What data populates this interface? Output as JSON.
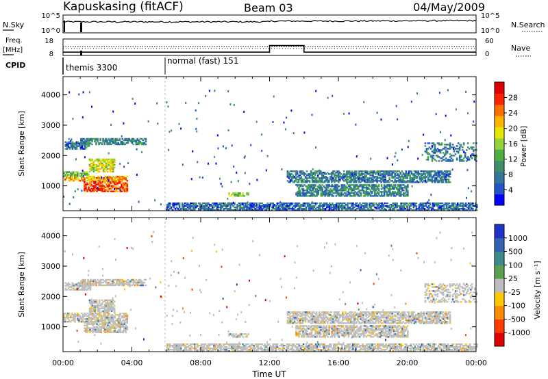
{
  "header": {
    "station": "Kapuskasing (fitACF)",
    "beam": "Beam 03",
    "date": "04/May/2009"
  },
  "chart_data": [
    {
      "type": "line",
      "panel": "noise",
      "left_label": "N.Sky",
      "right_label": "N.Search",
      "left_ticks": [
        "10^5",
        "10^0"
      ],
      "right_ticks": [
        "10^5",
        "10^0"
      ],
      "xlim": [
        0,
        24
      ]
    },
    {
      "type": "line",
      "panel": "frequency",
      "left_label_top": "Freq.",
      "left_label_bottom": "[MHz]",
      "right_label": "Nave",
      "left_ticks": [
        18,
        8
      ],
      "right_ticks": [
        60,
        0
      ],
      "freq_series": [
        {
          "x": 0,
          "y": 10
        },
        {
          "x": 12,
          "y": 10
        },
        {
          "x": 12,
          "y": 14
        },
        {
          "x": 14,
          "y": 14
        },
        {
          "x": 14,
          "y": 10
        },
        {
          "x": 24,
          "y": 10
        }
      ],
      "nave_level": 30,
      "xlim": [
        0,
        24
      ]
    },
    {
      "type": "annotation",
      "panel": "cpid",
      "label": "CPID",
      "modes": [
        {
          "start": 0,
          "text": "themis 3300"
        },
        {
          "start": 6,
          "text": "normal (fast) 151"
        }
      ]
    },
    {
      "type": "heatmap",
      "panel": "power",
      "ylabel": "Slant Range [km]",
      "yticks": [
        1000,
        2000,
        3000,
        4000
      ],
      "ylim": [
        180,
        4600
      ],
      "xlim": [
        0,
        24
      ],
      "colorbar": {
        "label": "Power [dB]",
        "ticks": [
          "4",
          "8",
          "12",
          "16",
          "20",
          "24",
          "28"
        ],
        "colors": [
          "#0000ff",
          "#2255c8",
          "#33779a",
          "#3f8f6e",
          "#4cb040",
          "#96d23c",
          "#e6e600",
          "#ffb400",
          "#ff6e00",
          "#ff2000",
          "#e00000"
        ]
      },
      "regions": [
        {
          "t0": 0.0,
          "t1": 3.7,
          "r0": 1150,
          "r1": 1300,
          "v": 20
        },
        {
          "t0": 1.2,
          "t1": 3.7,
          "r0": 800,
          "r1": 1150,
          "v": 24
        },
        {
          "t0": 0.0,
          "t1": 1.5,
          "r0": 1300,
          "r1": 1450,
          "v": 12
        },
        {
          "t0": 0.1,
          "t1": 1.6,
          "r0": 2200,
          "r1": 2450,
          "v": 6
        },
        {
          "t0": 1.0,
          "t1": 4.8,
          "r0": 2350,
          "r1": 2550,
          "v": 7
        },
        {
          "t0": 1.5,
          "t1": 3.0,
          "r0": 1450,
          "r1": 1900,
          "v": 16
        },
        {
          "t0": 9.6,
          "t1": 10.8,
          "r0": 650,
          "r1": 780,
          "v": 12
        },
        {
          "t0": 13.0,
          "t1": 22.5,
          "r0": 1100,
          "r1": 1500,
          "v": 6
        },
        {
          "t0": 13.5,
          "t1": 20.0,
          "r0": 650,
          "r1": 1050,
          "v": 7
        },
        {
          "t0": 21.0,
          "t1": 24.0,
          "r0": 1800,
          "r1": 2400,
          "v": 6
        },
        {
          "t0": 6.0,
          "t1": 24.0,
          "r0": 180,
          "r1": 450,
          "v": 5
        }
      ]
    },
    {
      "type": "heatmap",
      "panel": "velocity",
      "ylabel": "Slant Range [km]",
      "yticks": [
        1000,
        2000,
        3000,
        4000
      ],
      "ylim": [
        180,
        4600
      ],
      "xlim": [
        0,
        24
      ],
      "xticks": [
        "00:00",
        "04:00",
        "08:00",
        "12:00",
        "16:00",
        "20:00",
        "00:00"
      ],
      "xlabel": "Time UT",
      "colorbar": {
        "label": "Velocity [m s⁻¹]",
        "ticks": [
          "-1000",
          "-500",
          "-100",
          "-25",
          "25",
          "100",
          "500",
          "1000"
        ],
        "colors": [
          "#e00000",
          "#ff3c00",
          "#ff8c00",
          "#ffc800",
          "#bebebe",
          "#5aa050",
          "#3c8c8c",
          "#3264b4",
          "#1e32c8"
        ]
      },
      "regions": [
        {
          "t0": 0.0,
          "t1": 3.7,
          "r0": 1150,
          "r1": 1450,
          "v": 0
        },
        {
          "t0": 1.2,
          "t1": 3.7,
          "r0": 800,
          "r1": 1150,
          "v": 0
        },
        {
          "t0": 0.1,
          "t1": 1.6,
          "r0": 2200,
          "r1": 2450,
          "v": 0
        },
        {
          "t0": 1.0,
          "t1": 4.8,
          "r0": 2350,
          "r1": 2550,
          "v": 0
        },
        {
          "t0": 1.5,
          "t1": 3.0,
          "r0": 1450,
          "r1": 1900,
          "v": 0
        },
        {
          "t0": 9.6,
          "t1": 10.8,
          "r0": 650,
          "r1": 780,
          "v": 0
        },
        {
          "t0": 13.0,
          "t1": 22.5,
          "r0": 1100,
          "r1": 1500,
          "v": 0
        },
        {
          "t0": 13.5,
          "t1": 20.0,
          "r0": 650,
          "r1": 1050,
          "v": 0
        },
        {
          "t0": 21.0,
          "t1": 24.0,
          "r0": 1800,
          "r1": 2400,
          "v": 0
        },
        {
          "t0": 6.0,
          "t1": 24.0,
          "r0": 180,
          "r1": 450,
          "v": 0
        }
      ]
    }
  ]
}
